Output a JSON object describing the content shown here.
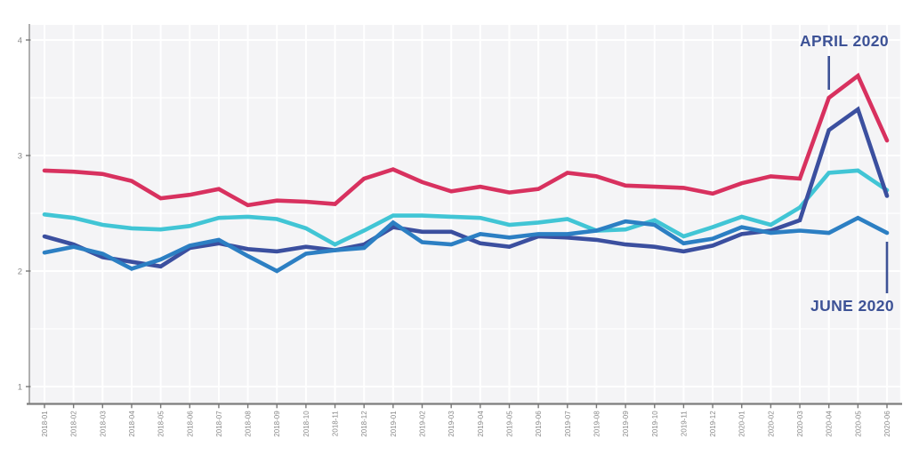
{
  "colors": {
    "crimson": "#d8315f",
    "cyan": "#41c5d5",
    "navy": "#3b4f9f",
    "medium_blue": "#2c7fc3",
    "annotation": "#3d5296",
    "plot_bg": "#f4f4f6",
    "gridline": "#ffffff",
    "axis_left": "#9c9c9c",
    "axis_bottom": "#7d7d7d",
    "tick_label": "#8a8a8a"
  },
  "chart_data": {
    "type": "line",
    "title": "",
    "xlabel": "",
    "ylabel": "",
    "grid": true,
    "legend": "none",
    "ylim": [
      0.85,
      4.13
    ],
    "yticks": [
      "4",
      "3",
      "2",
      "1"
    ],
    "ytick_values": [
      4,
      3,
      2,
      1
    ],
    "x": [
      "2018-01",
      "2018-02",
      "2018-03",
      "2018-04",
      "2018-05",
      "2018-06",
      "2018-07",
      "2018-08",
      "2018-09",
      "2018-10",
      "2018-11",
      "2018-12",
      "2019-01",
      "2019-02",
      "2019-03",
      "2019-04",
      "2019-05",
      "2019-06",
      "2019-07",
      "2019-08",
      "2019-09",
      "2019-10",
      "2019-11",
      "2019-12",
      "2020-01",
      "2020-02",
      "2020-03",
      "2020-04",
      "2020-05",
      "2020-06"
    ],
    "series": [
      {
        "name": "cyan-series",
        "color": "#41c5d5",
        "values": [
          2.49,
          2.46,
          2.4,
          2.37,
          2.36,
          2.39,
          2.46,
          2.47,
          2.45,
          2.37,
          2.23,
          2.35,
          2.48,
          2.48,
          2.47,
          2.46,
          2.4,
          2.42,
          2.45,
          2.35,
          2.36,
          2.44,
          2.3,
          2.38,
          2.47,
          2.4,
          2.55,
          2.85,
          2.87,
          2.7
        ]
      },
      {
        "name": "navy-series",
        "color": "#3b4f9f",
        "values": [
          2.3,
          2.23,
          2.12,
          2.08,
          2.04,
          2.2,
          2.24,
          2.19,
          2.17,
          2.21,
          2.18,
          2.23,
          2.38,
          2.34,
          2.34,
          2.24,
          2.21,
          2.3,
          2.29,
          2.27,
          2.23,
          2.21,
          2.17,
          2.22,
          2.32,
          2.35,
          2.44,
          3.22,
          3.4,
          2.65
        ]
      },
      {
        "name": "medium-blue-series",
        "color": "#2c7fc3",
        "values": [
          2.16,
          2.21,
          2.15,
          2.02,
          2.1,
          2.22,
          2.27,
          2.13,
          2.0,
          2.15,
          2.18,
          2.2,
          2.42,
          2.25,
          2.23,
          2.32,
          2.29,
          2.32,
          2.32,
          2.35,
          2.43,
          2.4,
          2.24,
          2.28,
          2.38,
          2.33,
          2.35,
          2.33,
          2.46,
          2.33
        ]
      },
      {
        "name": "crimson-series",
        "color": "#d8315f",
        "values": [
          2.87,
          2.86,
          2.84,
          2.78,
          2.63,
          2.66,
          2.71,
          2.57,
          2.61,
          2.6,
          2.58,
          2.8,
          2.88,
          2.77,
          2.69,
          2.73,
          2.68,
          2.71,
          2.85,
          2.82,
          2.74,
          2.73,
          2.72,
          2.67,
          2.76,
          2.82,
          2.8,
          3.5,
          3.69,
          3.13
        ]
      }
    ],
    "annotations": [
      {
        "label": "APRIL 2020",
        "month": "2020-04"
      },
      {
        "label": "JUNE 2020",
        "month": "2020-06"
      }
    ]
  }
}
